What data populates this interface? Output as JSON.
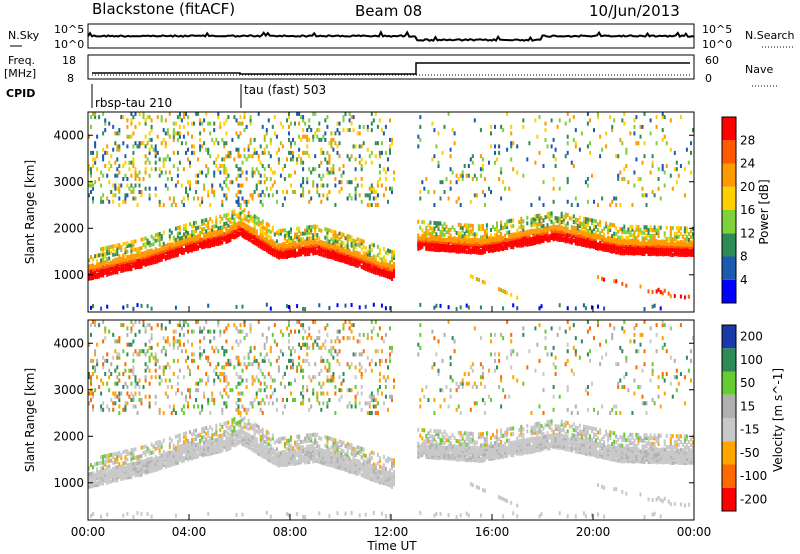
{
  "header": {
    "station": "Blackstone (fitACF)",
    "beam": "Beam 08",
    "date": "10/Jun/2013"
  },
  "top_panels": {
    "nsky_label": "N.Sky",
    "nsky_ticks": [
      "10^5",
      "10^0"
    ],
    "nsearch_label": "N.Search",
    "nsearch_ticks": [
      "10^5",
      "10^0"
    ],
    "freq_label": "Freq.",
    "freq_unit": "[MHz]",
    "freq_ticks": [
      "18",
      "8"
    ],
    "nave_label": "Nave",
    "nave_ticks": [
      "60",
      "0"
    ],
    "cpid_label": "CPID",
    "cpid_segments": [
      {
        "label": "rbsp-tau 210",
        "start": "00:00"
      },
      {
        "label": "tau (fast) 503",
        "start": "06:00"
      }
    ]
  },
  "colors": {
    "power_scale": [
      "#0000ff",
      "#1c5ab0",
      "#2e8b57",
      "#7fd13a",
      "#ffd000",
      "#ff9900",
      "#ff5a00",
      "#ff0000"
    ],
    "velocity_scale": [
      "#1a3aa8",
      "#2e8b57",
      "#66cc33",
      "#b0b0b0",
      "#c8c8c8",
      "#ffa500",
      "#ff6a00",
      "#ff0000"
    ]
  },
  "chart_data": [
    {
      "type": "heatmap",
      "title": "",
      "xlabel": "",
      "ylabel": "Slant Range [km]",
      "xlim": [
        "00:00",
        "24:00"
      ],
      "ylim": [
        200,
        4500
      ],
      "yticks": [
        "1000",
        "2000",
        "3000",
        "4000"
      ],
      "colorbar_label": "Power [dB]",
      "colorbar_ticks": [
        "4",
        "8",
        "12",
        "16",
        "20",
        "24",
        "28"
      ],
      "colorbar_range": [
        0,
        32
      ],
      "main_band": [
        {
          "t": 0.0,
          "range": 1050
        },
        {
          "t": 2.0,
          "range": 1300
        },
        {
          "t": 4.0,
          "range": 1650
        },
        {
          "t": 5.5,
          "range": 1850
        },
        {
          "t": 6.0,
          "range": 2000
        },
        {
          "t": 7.5,
          "range": 1500
        },
        {
          "t": 9.0,
          "range": 1600
        },
        {
          "t": 10.5,
          "range": 1350
        },
        {
          "t": 12.0,
          "range": 1050
        },
        {
          "t": 13.0,
          "range": 1700
        },
        {
          "t": 15.5,
          "range": 1600
        },
        {
          "t": 18.5,
          "range": 1900
        },
        {
          "t": 21.0,
          "range": 1600
        },
        {
          "t": 24.0,
          "range": 1550
        }
      ]
    },
    {
      "type": "heatmap",
      "title": "",
      "xlabel": "Time UT",
      "ylabel": "Slant Range [km]",
      "xlim": [
        "00:00",
        "24:00"
      ],
      "ylim": [
        200,
        4500
      ],
      "yticks": [
        "1000",
        "2000",
        "3000",
        "4000"
      ],
      "xticks": [
        "00:00",
        "04:00",
        "08:00",
        "12:00",
        "16:00",
        "20:00",
        "00:00"
      ],
      "colorbar_label": "Velocity [m s^-1]",
      "colorbar_ticks": [
        "200",
        "100",
        "50",
        "15",
        "-15",
        "-50",
        "-100",
        "-200"
      ],
      "colorbar_range": [
        -250,
        250
      ]
    }
  ]
}
